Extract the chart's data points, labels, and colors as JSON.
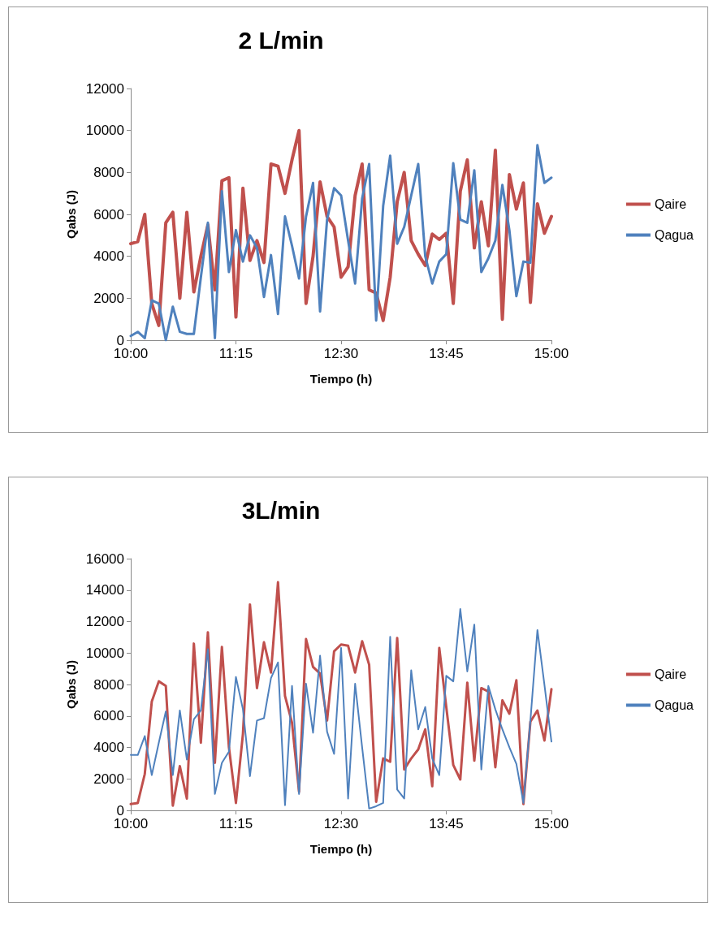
{
  "chart_data": [
    {
      "type": "line",
      "title": "2 L/min",
      "xlabel": "Tiempo (h)",
      "ylabel": "Qabs (J)",
      "legend": "right",
      "grid": false,
      "marker": "none",
      "line_style": "solid",
      "x": [
        10,
        10.0833,
        10.1667,
        10.25,
        10.3333,
        10.4167,
        10.5,
        10.5833,
        10.6667,
        10.75,
        10.8333,
        10.9167,
        11,
        11.0833,
        11.1667,
        11.25,
        11.3333,
        11.4167,
        11.5,
        11.5833,
        11.6667,
        11.75,
        11.8333,
        11.9167,
        12,
        12.0833,
        12.1667,
        12.25,
        12.3333,
        12.4167,
        12.5,
        12.5833,
        12.6667,
        12.75,
        12.8333,
        12.9167,
        13,
        13.0833,
        13.1667,
        13.25,
        13.3333,
        13.4167,
        13.5,
        13.5833,
        13.6667,
        13.75,
        13.8333,
        13.9167,
        14,
        14.0833,
        14.1667,
        14.25,
        14.3333,
        14.4167,
        14.5,
        14.5833,
        14.6667,
        14.75,
        14.8333,
        14.9167,
        15
      ],
      "xlim": [
        10,
        15
      ],
      "xticks": [
        {
          "value": 10,
          "label": "10:00"
        },
        {
          "value": 11.25,
          "label": "11:15"
        },
        {
          "value": 12.5,
          "label": "12:30"
        },
        {
          "value": 13.75,
          "label": "13:45"
        },
        {
          "value": 15,
          "label": "15:00"
        }
      ],
      "ylim": [
        0,
        12000
      ],
      "yticks": [
        0,
        2000,
        4000,
        6000,
        8000,
        10000,
        12000
      ],
      "series": [
        {
          "name": "Qaire",
          "color": "#c0504d",
          "values": [
            4600,
            4700,
            6000,
            1750,
            700,
            5600,
            6100,
            2000,
            6100,
            2300,
            4000,
            5500,
            2400,
            7600,
            7750,
            1100,
            7250,
            3800,
            4750,
            3700,
            8400,
            8300,
            7000,
            8600,
            10000,
            1750,
            4000,
            7550,
            5900,
            5400,
            3000,
            3500,
            6900,
            8400,
            2400,
            2250,
            940,
            3000,
            6600,
            8000,
            4750,
            4100,
            3560,
            5060,
            4800,
            5100,
            1750,
            7100,
            8600,
            4400,
            6600,
            4500,
            9060,
            1000,
            7900,
            6250,
            7500,
            1800,
            6500,
            5100,
            5900
          ]
        },
        {
          "name": "Qagua",
          "color": "#4f81bd",
          "values": [
            200,
            400,
            100,
            1900,
            1750,
            0,
            1600,
            400,
            300,
            300,
            3000,
            5600,
            100,
            7100,
            3250,
            5250,
            3750,
            5000,
            4400,
            2060,
            4060,
            1250,
            5900,
            4500,
            2940,
            5900,
            7500,
            1370,
            5750,
            7250,
            6900,
            4750,
            2700,
            6750,
            8400,
            940,
            6400,
            8800,
            4600,
            5400,
            6900,
            8400,
            4000,
            2700,
            3750,
            4100,
            8440,
            5750,
            5600,
            8100,
            3250,
            3900,
            4750,
            7400,
            5250,
            2100,
            3750,
            3700,
            9300,
            7500,
            7750
          ]
        }
      ]
    },
    {
      "type": "line",
      "title": "3L/min",
      "xlabel": "Tiempo (h)",
      "ylabel": "Qabs (J)",
      "legend": "right",
      "grid": false,
      "marker": "none",
      "line_style": "solid",
      "x": [
        10,
        10.0833,
        10.1667,
        10.25,
        10.3333,
        10.4167,
        10.5,
        10.5833,
        10.6667,
        10.75,
        10.8333,
        10.9167,
        11,
        11.0833,
        11.1667,
        11.25,
        11.3333,
        11.4167,
        11.5,
        11.5833,
        11.6667,
        11.75,
        11.8333,
        11.9167,
        12,
        12.0833,
        12.1667,
        12.25,
        12.3333,
        12.4167,
        12.5,
        12.5833,
        12.6667,
        12.75,
        12.8333,
        12.9167,
        13,
        13.0833,
        13.1667,
        13.25,
        13.3333,
        13.4167,
        13.5,
        13.5833,
        13.6667,
        13.75,
        13.8333,
        13.9167,
        14,
        14.0833,
        14.1667,
        14.25,
        14.3333,
        14.4167,
        14.5,
        14.5833,
        14.6667,
        14.75,
        14.8333,
        14.9167,
        15
      ],
      "xlim": [
        10,
        15
      ],
      "xticks": [
        {
          "value": 10,
          "label": "10:00"
        },
        {
          "value": 11.25,
          "label": "11:15"
        },
        {
          "value": 12.5,
          "label": "12:30"
        },
        {
          "value": 13.75,
          "label": "13:45"
        },
        {
          "value": 15,
          "label": "15:00"
        }
      ],
      "ylim": [
        0,
        16000
      ],
      "yticks": [
        0,
        2000,
        4000,
        6000,
        8000,
        10000,
        12000,
        14000,
        16000
      ],
      "series": [
        {
          "name": "Qaire",
          "color": "#c0504d",
          "values": [
            400,
            470,
            2310,
            6920,
            8200,
            7910,
            300,
            2810,
            750,
            10600,
            4300,
            11320,
            3020,
            10390,
            4010,
            470,
            4860,
            13090,
            7770,
            10680,
            8760,
            14500,
            7270,
            5570,
            1180,
            10890,
            9120,
            8690,
            5710,
            10110,
            10540,
            10460,
            8760,
            10750,
            9260,
            540,
            3300,
            3090,
            10960,
            2600,
            3300,
            3870,
            5150,
            1530,
            10320,
            6570,
            2880,
            1960,
            8120,
            3160,
            7770,
            7560,
            2740,
            6990,
            6140,
            8270,
            400,
            5640,
            6350,
            4440,
            7700
          ]
        },
        {
          "name": "Qagua",
          "color": "#4f81bd",
          "values": [
            3520,
            3520,
            4720,
            2240,
            4300,
            6280,
            2240,
            6350,
            3230,
            5790,
            6350,
            10250,
            1040,
            3020,
            3730,
            8480,
            6420,
            2170,
            5710,
            5860,
            8410,
            9400,
            330,
            7910,
            1040,
            8050,
            4930,
            9830,
            5000,
            3590,
            10320,
            750,
            8050,
            4010,
            110,
            260,
            470,
            11030,
            1320,
            750,
            8900,
            5150,
            6570,
            3300,
            2240,
            8550,
            8200,
            12800,
            8830,
            11810,
            2600,
            7910,
            6420,
            5150,
            4010,
            2950,
            470,
            5710,
            11460,
            7980,
            4370
          ]
        }
      ]
    }
  ]
}
